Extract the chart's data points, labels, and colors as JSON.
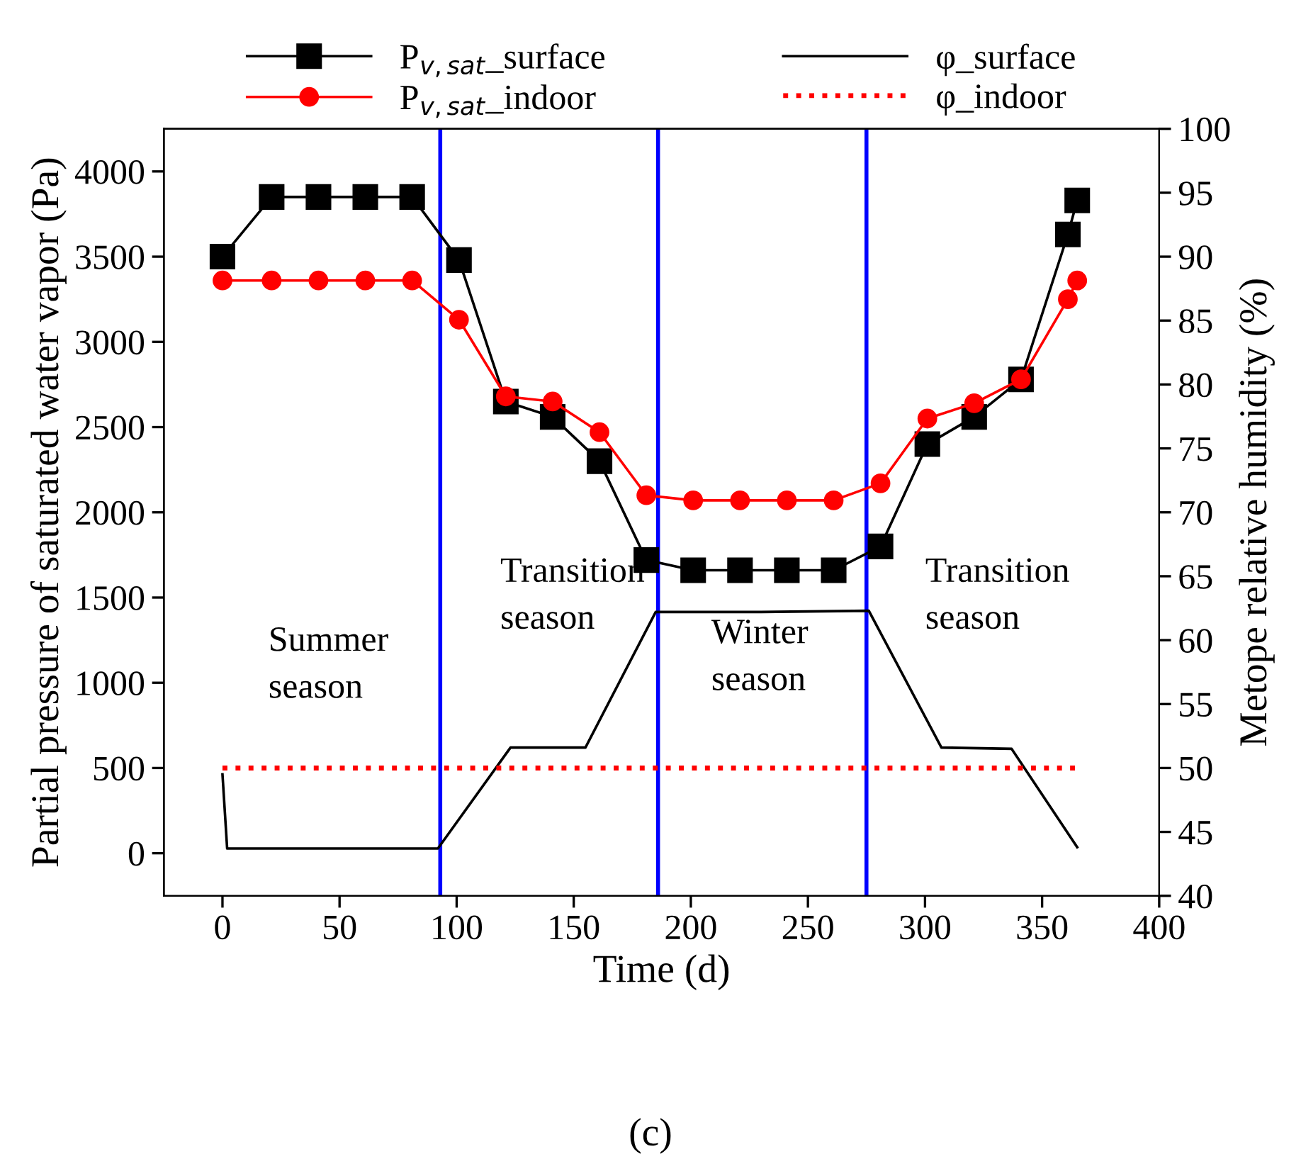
{
  "chart_data": {
    "type": "line",
    "xlabel": "Time (d)",
    "ylabel": "Partial pressure of saturated water vapor (Pa)",
    "y2label": "Metope relative humidity (%)",
    "xlim": [
      -25,
      400
    ],
    "xticks": [
      0,
      50,
      100,
      150,
      200,
      250,
      300,
      350,
      400
    ],
    "ylim": [
      -250,
      4250
    ],
    "yticks": [
      0,
      500,
      1000,
      1500,
      2000,
      2500,
      3000,
      3500,
      4000
    ],
    "y2lim": [
      40,
      100
    ],
    "y2ticks": [
      40,
      45,
      50,
      55,
      60,
      65,
      70,
      75,
      80,
      85,
      90,
      95,
      100
    ],
    "legend": "top",
    "grid": false,
    "series": [
      {
        "name": "P$_{v,sat}$_surface",
        "color": "#000000",
        "marker": "square",
        "line_style": "solid",
        "x": [
          0,
          21,
          41,
          61,
          81,
          101,
          121,
          141,
          161,
          181,
          201,
          221,
          241,
          261,
          281,
          301,
          321,
          341,
          361,
          365
        ],
        "values": [
          3500,
          3850,
          3850,
          3850,
          3850,
          3480,
          2650,
          2560,
          2300,
          1720,
          1660,
          1660,
          1660,
          1660,
          1800,
          2400,
          2560,
          2780,
          3630,
          3830
        ]
      },
      {
        "name": "P$_{v,sat}$_indoor",
        "color": "#ff0000",
        "marker": "circle",
        "line_style": "solid",
        "x": [
          0,
          21,
          41,
          61,
          81,
          101,
          121,
          141,
          161,
          181,
          201,
          221,
          241,
          261,
          281,
          301,
          321,
          341,
          361,
          365
        ],
        "values": [
          3360,
          3360,
          3360,
          3360,
          3360,
          3130,
          2680,
          2650,
          2470,
          2100,
          2070,
          2070,
          2070,
          2070,
          2170,
          2550,
          2640,
          2780,
          3250,
          3360
        ]
      },
      {
        "name": "φ_surface",
        "color": "#000000",
        "axis": "y2",
        "marker": "none",
        "line_style": "solid",
        "x": [
          0,
          2,
          92,
          123,
          155,
          185,
          230,
          276,
          307,
          337,
          365
        ],
        "values": [
          49.5,
          43.7,
          43.7,
          51.6,
          51.6,
          62.2,
          62.2,
          62.3,
          51.6,
          51.5,
          43.8
        ]
      },
      {
        "name": "φ_indoor",
        "color": "#ff0000",
        "axis": "y2",
        "marker": "none",
        "line_style": "dotted",
        "x": [
          0,
          365
        ],
        "values": [
          50,
          50
        ]
      }
    ],
    "ref_lines": [
      {
        "axis": "x",
        "value": 93,
        "color": "#0000ff"
      },
      {
        "axis": "x",
        "value": 186,
        "color": "#0000ff"
      },
      {
        "axis": "x",
        "value": 275,
        "color": "#0000ff"
      }
    ],
    "annotations": [
      "Summer\nseason",
      "Transition\nseason",
      "Winter\nseason",
      "Transition\nseason",
      "(c)"
    ]
  }
}
